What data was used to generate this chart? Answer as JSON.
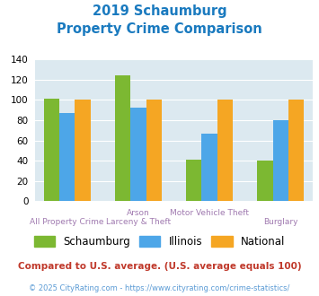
{
  "title_line1": "2019 Schaumburg",
  "title_line2": "Property Crime Comparison",
  "title_color": "#1a7abf",
  "schaumburg": [
    101,
    124,
    41,
    40
  ],
  "illinois": [
    87,
    92,
    67,
    80
  ],
  "national": [
    100,
    100,
    100,
    100
  ],
  "schaumburg_color": "#7cb832",
  "illinois_color": "#4da6e8",
  "national_color": "#f5a623",
  "ylim": [
    0,
    140
  ],
  "yticks": [
    0,
    20,
    40,
    60,
    80,
    100,
    120,
    140
  ],
  "plot_bg": "#dce9f0",
  "legend_labels": [
    "Schaumburg",
    "Illinois",
    "National"
  ],
  "top_labels": [
    "",
    "Arson",
    "Motor Vehicle Theft",
    ""
  ],
  "bottom_labels": [
    "All Property Crime",
    "Larceny & Theft",
    "",
    "Burglary"
  ],
  "label_color": "#a07ab0",
  "footnote1": "Compared to U.S. average. (U.S. average equals 100)",
  "footnote2": "© 2025 CityRating.com - https://www.cityrating.com/crime-statistics/",
  "footnote1_color": "#c0392b",
  "footnote2_color": "#5b9bd5"
}
